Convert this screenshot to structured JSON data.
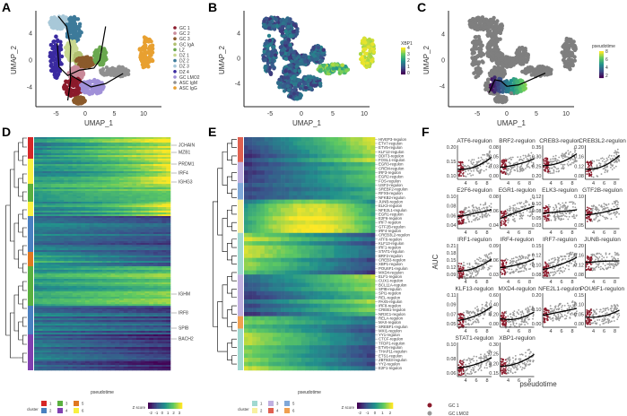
{
  "panels": {
    "A": "A",
    "B": "B",
    "C": "C",
    "D": "D",
    "E": "E",
    "F": "F"
  },
  "colors": {
    "gc1": "#8b1a2b",
    "gc_lmo2": "#9a9a9a",
    "umap_gray": "#7f7f7f",
    "curve": "#000000"
  },
  "umap": {
    "xlabel": "UMAP_1",
    "ylabel": "UMAP_2",
    "xticks": [
      "-5",
      "0",
      "5",
      "10"
    ],
    "yticks": [
      "4",
      "0",
      "-4"
    ],
    "clusters": [
      {
        "name": "GC 1",
        "color": "#8b1a2b"
      },
      {
        "name": "GC 2",
        "color": "#c98a9a"
      },
      {
        "name": "GC 3",
        "color": "#8b5a2b"
      },
      {
        "name": "GC IgA",
        "color": "#b0c070"
      },
      {
        "name": "LZ",
        "color": "#6aa84f"
      },
      {
        "name": "DZ 1",
        "color": "#c8d890"
      },
      {
        "name": "DZ 2",
        "color": "#3d7a9a"
      },
      {
        "name": "DZ 3",
        "color": "#a8c8d8"
      },
      {
        "name": "DZ 4",
        "color": "#3a2aa0"
      },
      {
        "name": "GC LMO2",
        "color": "#a090d8"
      },
      {
        "name": "ASC IgM",
        "color": "#909090"
      },
      {
        "name": "ASC IgG",
        "color": "#e8a030"
      }
    ],
    "b_legend": {
      "title": "XBP1",
      "ticks": [
        "4",
        "3",
        "2",
        "1",
        "0"
      ]
    },
    "c_legend": {
      "title": "pseudotime",
      "ticks": [
        "8",
        "6",
        "4",
        "2"
      ]
    }
  },
  "chart_data": [
    {
      "type": "heatmap",
      "panel": "D",
      "xlabel": "pseudotime",
      "gene_labels": [
        "JCHAIN",
        "MZB1",
        "PRDM1",
        "IRF4",
        "IGHG3",
        "IGHM",
        "IRF8",
        "SPIB",
        "BACH2"
      ],
      "cluster_legend": {
        "title": "cluster",
        "items": [
          {
            "label": "1",
            "color": "#d62728"
          },
          {
            "label": "2",
            "color": "#4a80c0"
          },
          {
            "label": "3",
            "color": "#5ab040"
          },
          {
            "label": "4",
            "color": "#8040b0"
          },
          {
            "label": "5",
            "color": "#e07820"
          },
          {
            "label": "6",
            "color": "#f8f040"
          }
        ]
      },
      "colorbar": {
        "title": "Z score",
        "ticks": [
          "-2",
          "-1",
          "0",
          "1",
          "2",
          "3"
        ]
      }
    },
    {
      "type": "heatmap",
      "panel": "E",
      "xlabel": "pseudotime",
      "row_labels": [
        "HIVEP3-regulon",
        "ETV7-regulon",
        "ETV5-regulon",
        "KLF12-regulon",
        "DDIT3-regulon",
        "FOSL1-regulon",
        "EGR3-regulon",
        "CREM-regulon",
        "IRF3-regulon",
        "EGR2-regulon",
        "FOS-regulon",
        "USF2-regulon",
        "SREBF2-regulon",
        "RFX5-regulon",
        "NFKB2-regulon",
        "JUNB-regulon",
        "ELK3-regulon",
        "NFE2L1-regulon",
        "EGR1-regulon",
        "E2F6-regulon",
        "IRF7-regulon",
        "GTF2B-regulon",
        "IRF4-regulon",
        "CREB3L2-regulon",
        "ATF6-regulon",
        "KLF13-regulon",
        "IRF1-regulon",
        "STAT1-regulon",
        "BRF2-regulon",
        "CREB3-regulon",
        "XBP1-regulon",
        "POU6F1-regulon",
        "MXD4-regulon",
        "ELF1-regulon",
        "CUX1-regulon",
        "BCL11A-regulon",
        "SPIB-regulon",
        "SPI1-regulon",
        "REL-regulon",
        "PAX5-regulon",
        "IRF8-regulon",
        "CREB1-regulon",
        "NR3C1-regulon",
        "RELA-regulon",
        "MAX-regulon",
        "SREBF1-regulon",
        "MXI1-regulon",
        "YY1-regulon",
        "CTCF-regulon",
        "TFDP1-regulon",
        "ETV6-regulon",
        "THAP11-regulon",
        "ETS1-regulon",
        "ZBTB33-regulon",
        "YY2-regulon",
        "E2F1-regulon"
      ],
      "cluster_legend": {
        "title": "cluster",
        "items": [
          {
            "label": "1",
            "color": "#a0d8d0"
          },
          {
            "label": "2",
            "color": "#f8f0a0"
          },
          {
            "label": "3",
            "color": "#c0b0e0"
          },
          {
            "label": "4",
            "color": "#e06050"
          },
          {
            "label": "5",
            "color": "#80a8d8"
          },
          {
            "label": "6",
            "color": "#f0a050"
          }
        ]
      },
      "colorbar": {
        "title": "Z score",
        "ticks": [
          "-2",
          "-1",
          "0",
          "1",
          "2"
        ]
      }
    },
    {
      "type": "scatter",
      "panel": "F",
      "xlabel": "pseudotime",
      "ylabel": "AUC",
      "xticks": [
        "4",
        "6",
        "8"
      ],
      "legend": [
        {
          "label": "GC 1",
          "color": "#8b1a2b"
        },
        {
          "label": "GC LMO2",
          "color": "#9a9a9a"
        }
      ],
      "facets": [
        {
          "title": "ATF6-regulon",
          "yticks": [
            "0.20",
            "0.15",
            "0.10"
          ]
        },
        {
          "title": "BRF2-regulon",
          "yticks": [
            "0.08",
            "0.05",
            "0.03",
            "0.00"
          ]
        },
        {
          "title": "CREB3-regulon",
          "yticks": [
            "0.35",
            "0.30",
            "0.25",
            "0.20"
          ]
        },
        {
          "title": "CREB3L2-regulon",
          "yticks": [
            "0.20",
            "0.16",
            "0.12",
            "0.08"
          ]
        },
        {
          "title": "E2F6-regulon",
          "yticks": [
            "0.10",
            "0.08",
            "0.06",
            "0.04"
          ]
        },
        {
          "title": "EGR1-regulon",
          "yticks": [
            "0.08",
            "0.06",
            "0.04"
          ]
        },
        {
          "title": "ELK3-regulon",
          "yticks": [
            "0.12",
            "0.10",
            "0.08",
            "0.05",
            "0.03"
          ]
        },
        {
          "title": "GTF2B-regulon",
          "yticks": [
            "0.10",
            "0.05"
          ]
        },
        {
          "title": "IRF1-regulon",
          "yticks": [
            "0.21",
            "0.18",
            "0.15",
            "0.12",
            "0.09"
          ]
        },
        {
          "title": "IRF4-regulon",
          "yticks": [
            "0.09",
            "0.06",
            "0.03"
          ]
        },
        {
          "title": "IRF7-regulon",
          "yticks": [
            "0.15",
            "0.12",
            "0.10",
            "0.08"
          ]
        },
        {
          "title": "JUNB-regulon",
          "yticks": [
            "0.20",
            "0.16",
            "0.12",
            "0.08"
          ]
        },
        {
          "title": "KLF13-regulon",
          "yticks": [
            "0.11",
            "0.09",
            "0.07",
            "0.05"
          ]
        },
        {
          "title": "MXD4-regulon",
          "yticks": [
            "0.60",
            "0.40",
            "0.20",
            "0.00"
          ]
        },
        {
          "title": "NFE2L1-regulon",
          "yticks": [
            "0.20",
            "0.10",
            "0.00"
          ]
        },
        {
          "title": "POU6F1-regulon",
          "yticks": [
            "0.15",
            "0.10",
            "0.05",
            "0.00"
          ]
        },
        {
          "title": "STAT1-regulon",
          "yticks": [
            "0.10",
            "0.08",
            "0.06"
          ]
        },
        {
          "title": "XBP1-regulon",
          "yticks": [
            "0.30",
            "0.25",
            "0.20",
            "0.15"
          ]
        }
      ]
    }
  ]
}
